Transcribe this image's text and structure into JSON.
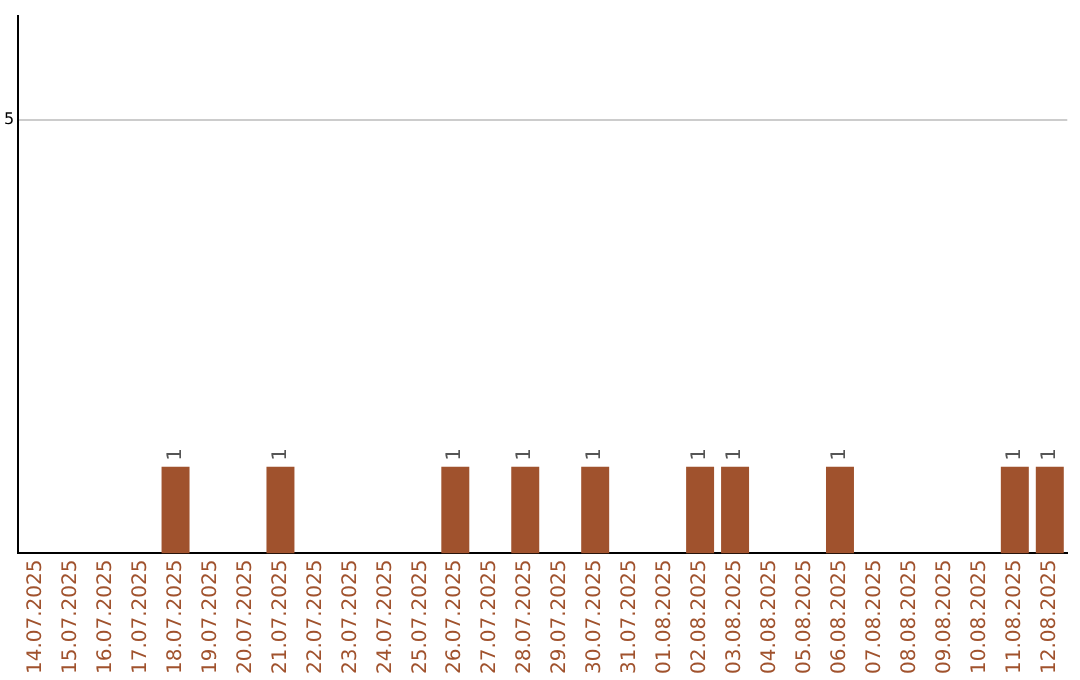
{
  "chart_data": {
    "type": "bar",
    "categories": [
      "14.07.2025",
      "15.07.2025",
      "16.07.2025",
      "17.07.2025",
      "18.07.2025",
      "19.07.2025",
      "20.07.2025",
      "21.07.2025",
      "22.07.2025",
      "23.07.2025",
      "24.07.2025",
      "25.07.2025",
      "26.07.2025",
      "27.07.2025",
      "28.07.2025",
      "29.07.2025",
      "30.07.2025",
      "31.07.2025",
      "01.08.2025",
      "02.08.2025",
      "03.08.2025",
      "04.08.2025",
      "05.08.2025",
      "06.08.2025",
      "07.08.2025",
      "08.08.2025",
      "09.08.2025",
      "10.08.2025",
      "11.08.2025",
      "12.08.2025"
    ],
    "values": [
      0,
      0,
      0,
      0,
      1,
      0,
      0,
      1,
      0,
      0,
      0,
      0,
      1,
      0,
      1,
      0,
      1,
      0,
      0,
      1,
      1,
      0,
      0,
      1,
      0,
      0,
      0,
      0,
      1,
      1
    ],
    "value_labels": [
      null,
      null,
      null,
      null,
      "1",
      null,
      null,
      "1",
      null,
      null,
      null,
      null,
      "1",
      null,
      "1",
      null,
      "1",
      null,
      null,
      "1",
      "1",
      null,
      null,
      "1",
      null,
      null,
      null,
      null,
      "1",
      "1"
    ],
    "color": "#a0522d",
    "ylim": [
      0,
      6.2
    ],
    "yticks": [
      5
    ],
    "grid": "y",
    "legend": false
  }
}
